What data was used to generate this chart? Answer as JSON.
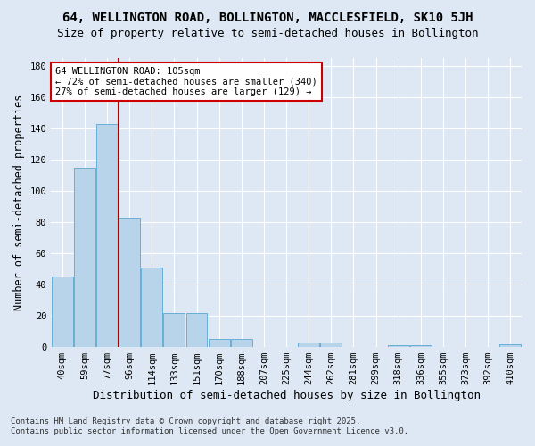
{
  "title": "64, WELLINGTON ROAD, BOLLINGTON, MACCLESFIELD, SK10 5JH",
  "subtitle": "Size of property relative to semi-detached houses in Bollington",
  "xlabel": "Distribution of semi-detached houses by size in Bollington",
  "ylabel": "Number of semi-detached properties",
  "footer": "Contains HM Land Registry data © Crown copyright and database right 2025.\nContains public sector information licensed under the Open Government Licence v3.0.",
  "categories": [
    "40sqm",
    "59sqm",
    "77sqm",
    "96sqm",
    "114sqm",
    "133sqm",
    "151sqm",
    "170sqm",
    "188sqm",
    "207sqm",
    "225sqm",
    "244sqm",
    "262sqm",
    "281sqm",
    "299sqm",
    "318sqm",
    "336sqm",
    "355sqm",
    "373sqm",
    "392sqm",
    "410sqm"
  ],
  "values": [
    45,
    115,
    143,
    83,
    51,
    22,
    22,
    5,
    5,
    0,
    0,
    3,
    3,
    0,
    0,
    1,
    1,
    0,
    0,
    0,
    2
  ],
  "bar_color": "#b8d4ea",
  "bar_edge_color": "#6aaed6",
  "vline_x_index": 3,
  "vline_color": "#aa0000",
  "annotation_text": "64 WELLINGTON ROAD: 105sqm\n← 72% of semi-detached houses are smaller (340)\n27% of semi-detached houses are larger (129) →",
  "annotation_box_facecolor": "#ffffff",
  "annotation_box_edgecolor": "#cc0000",
  "ylim": [
    0,
    185
  ],
  "yticks": [
    0,
    20,
    40,
    60,
    80,
    100,
    120,
    140,
    160,
    180
  ],
  "bg_color": "#dde8f4",
  "grid_color": "#ffffff",
  "title_fontsize": 10,
  "subtitle_fontsize": 9,
  "tick_fontsize": 7.5,
  "ylabel_fontsize": 8.5,
  "xlabel_fontsize": 9,
  "footer_fontsize": 6.5
}
